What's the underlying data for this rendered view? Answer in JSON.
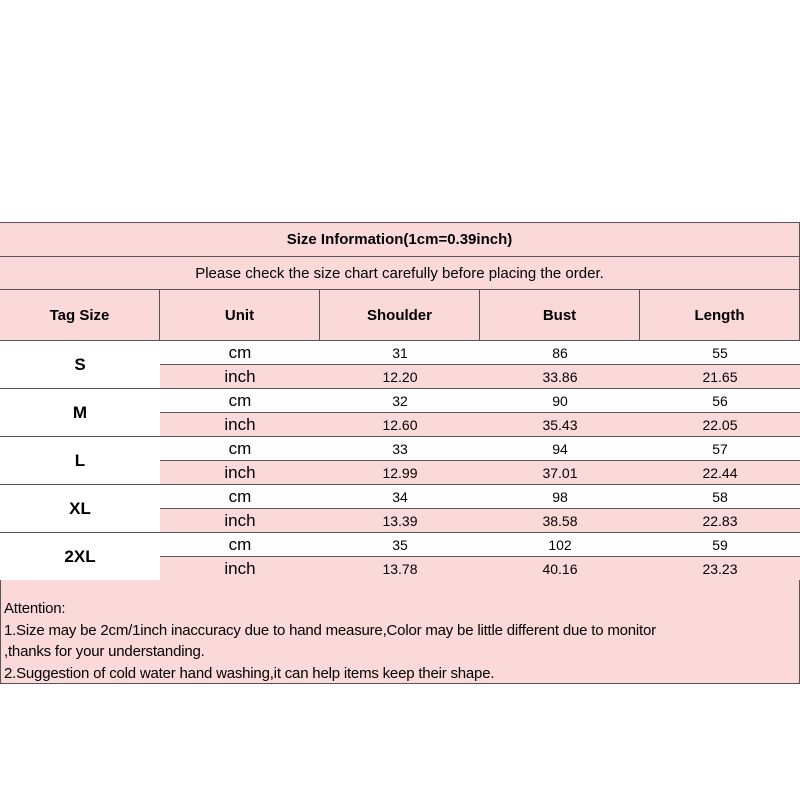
{
  "title": "Size Information(1cm=0.39inch)",
  "subtitle": "Please check the size chart carefully before placing the order.",
  "headers": [
    "Tag Size",
    "Unit",
    "Shoulder",
    "Bust",
    "Length"
  ],
  "sizes": [
    {
      "tag": "S",
      "rows": [
        {
          "unit": "cm",
          "values": [
            "31",
            "86",
            "55"
          ]
        },
        {
          "unit": "inch",
          "values": [
            "12.20",
            "33.86",
            "21.65"
          ]
        }
      ]
    },
    {
      "tag": "M",
      "rows": [
        {
          "unit": "cm",
          "values": [
            "32",
            "90",
            "56"
          ]
        },
        {
          "unit": "inch",
          "values": [
            "12.60",
            "35.43",
            "22.05"
          ]
        }
      ]
    },
    {
      "tag": "L",
      "rows": [
        {
          "unit": "cm",
          "values": [
            "33",
            "94",
            "57"
          ]
        },
        {
          "unit": "inch",
          "values": [
            "12.99",
            "37.01",
            "22.44"
          ]
        }
      ]
    },
    {
      "tag": "XL",
      "rows": [
        {
          "unit": "cm",
          "values": [
            "34",
            "98",
            "58"
          ]
        },
        {
          "unit": "inch",
          "values": [
            "13.39",
            "38.58",
            "22.83"
          ]
        }
      ]
    },
    {
      "tag": "2XL",
      "rows": [
        {
          "unit": "cm",
          "values": [
            "35",
            "102",
            "59"
          ]
        },
        {
          "unit": "inch",
          "values": [
            "13.78",
            "40.16",
            "23.23"
          ]
        }
      ]
    }
  ],
  "attention": [
    "Attention:",
    "1.Size may be 2cm/1inch inaccuracy due to hand measure,Color may be little different due to monitor",
    ",thanks for your understanding.",
    "2.Suggestion of cold water hand washing,it can help items keep their shape."
  ],
  "colors": {
    "pink": "#fcd9d9",
    "border": "#555555"
  }
}
